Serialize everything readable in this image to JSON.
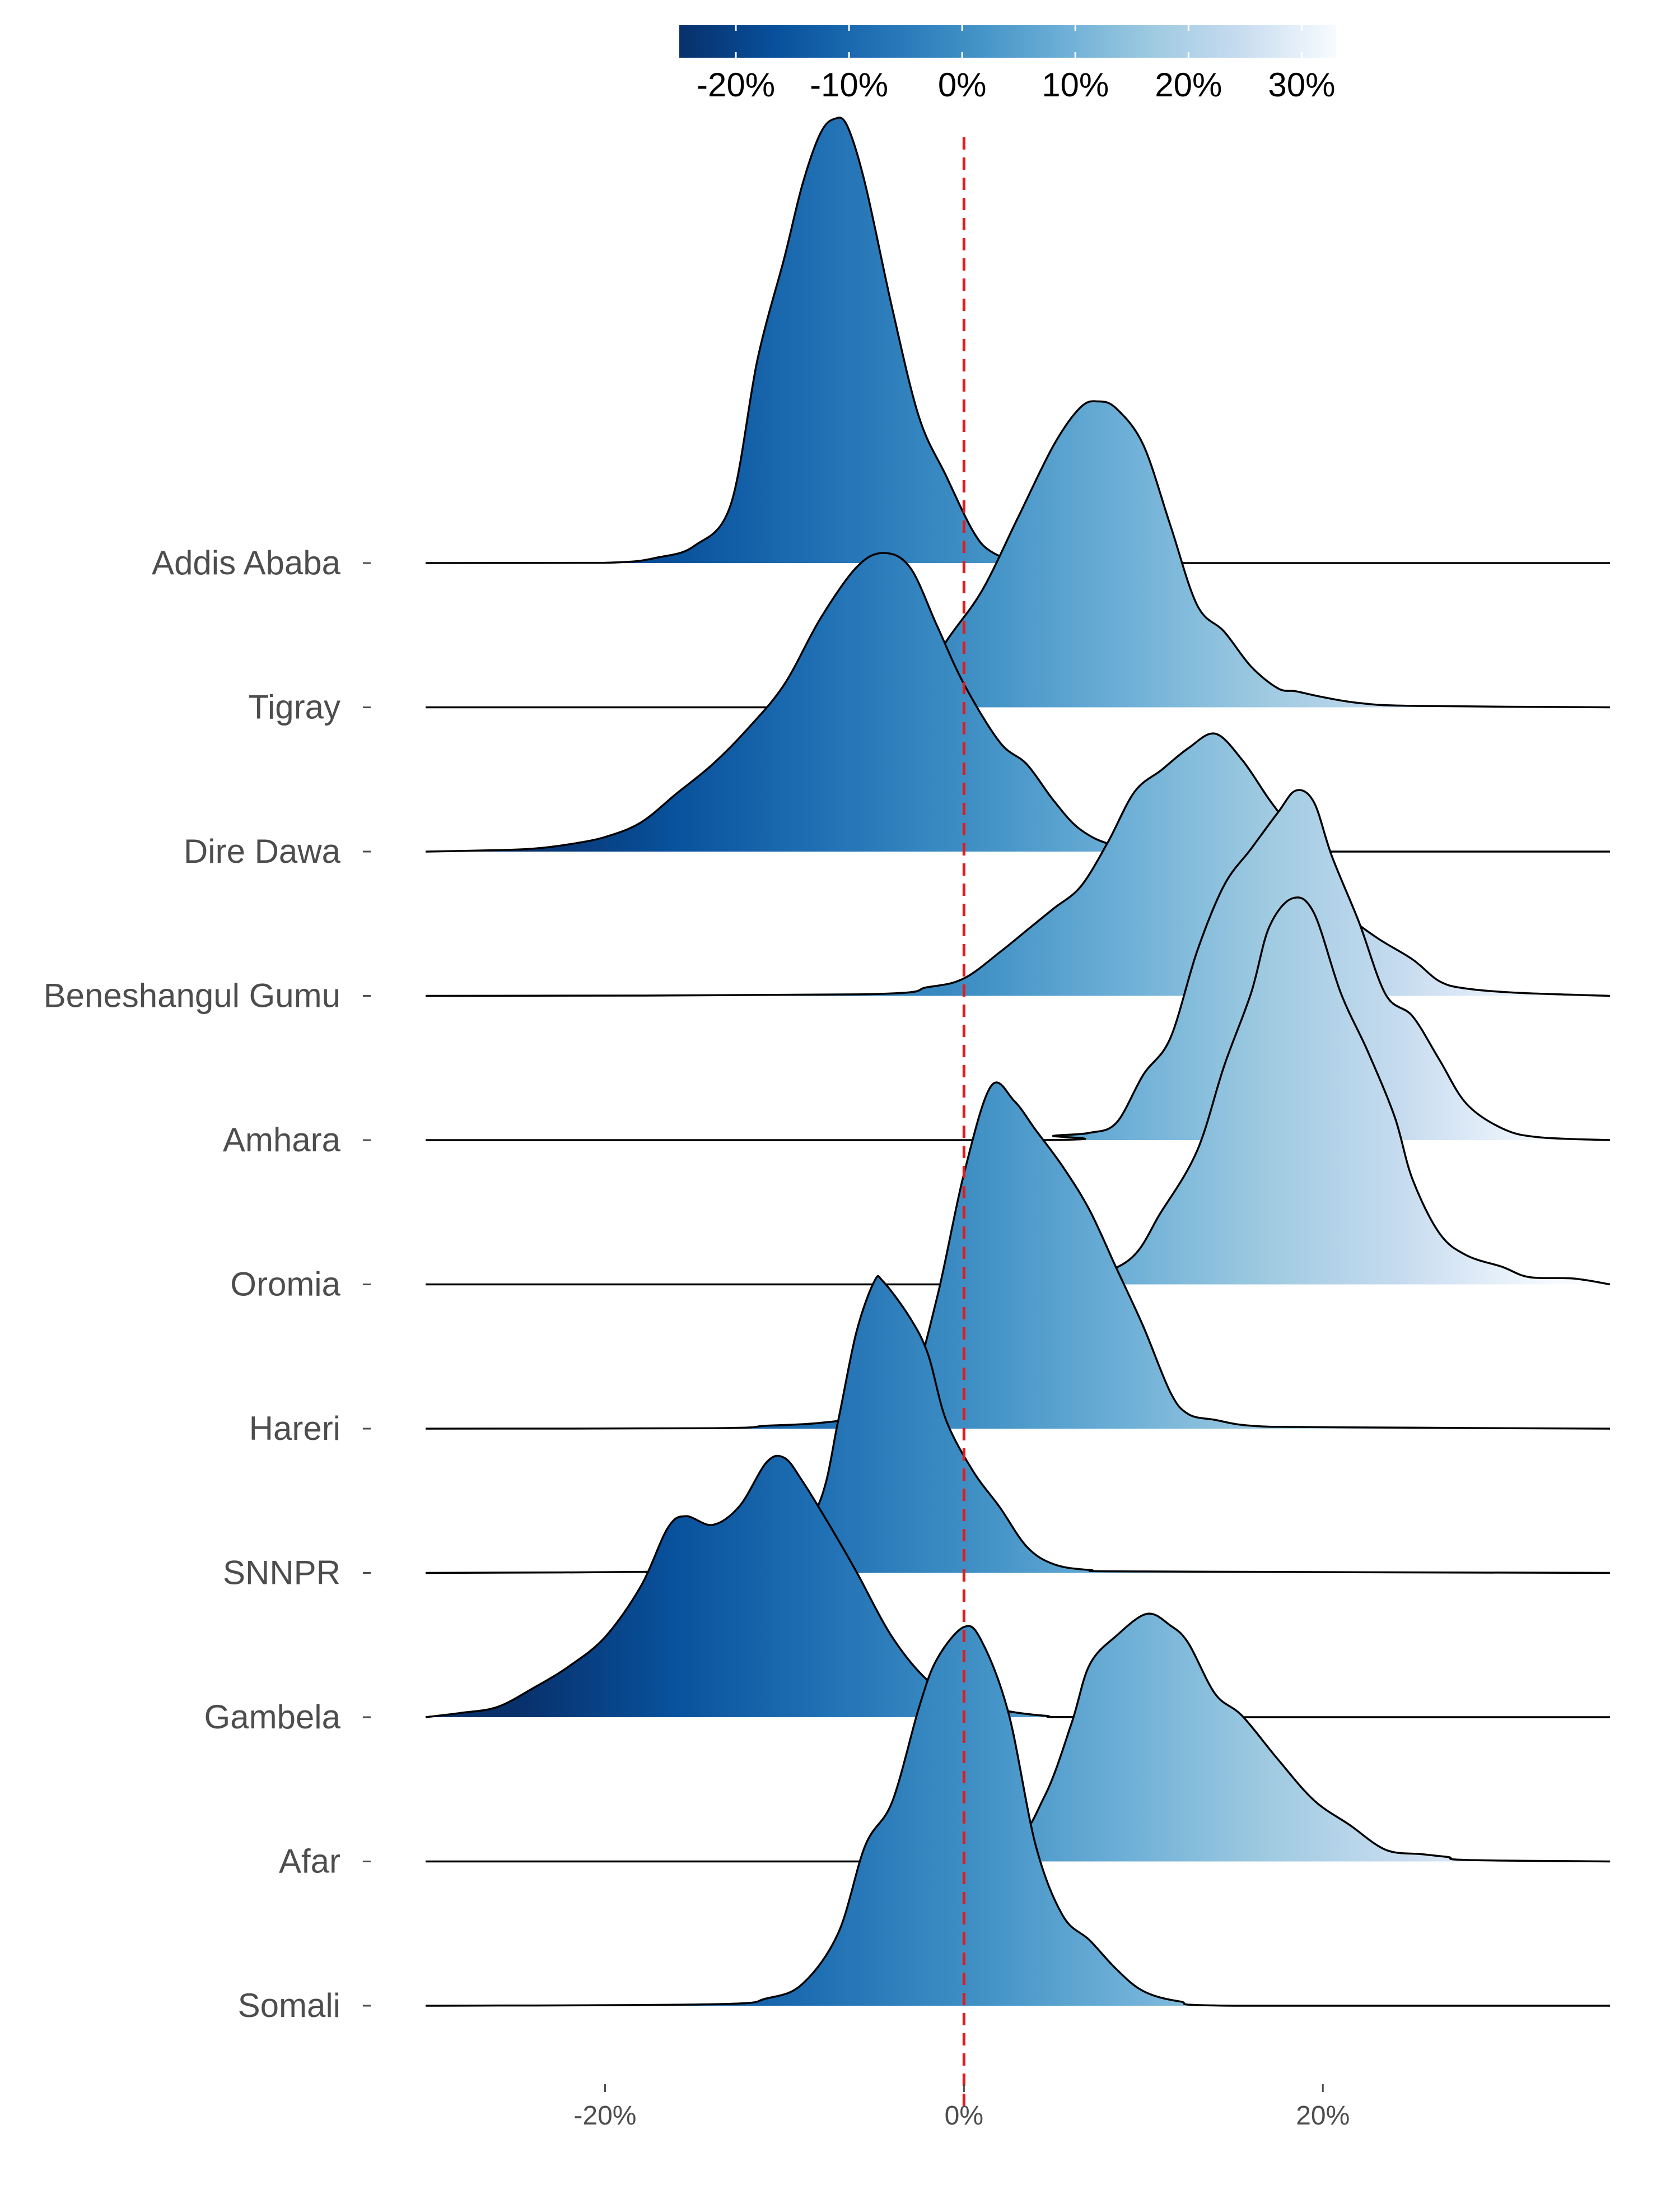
{
  "chart_data": {
    "type": "ridgeline",
    "title": "",
    "xlabel": "",
    "ylabel": "",
    "xlim": [
      -30,
      36
    ],
    "x_ticks": [
      {
        "value": -20,
        "label": "-20%"
      },
      {
        "value": 0,
        "label": "0%"
      },
      {
        "value": 20,
        "label": "20%"
      }
    ],
    "reference_line": {
      "x": 0,
      "color": "#e41a1c",
      "style": "dashed"
    },
    "colorbar": {
      "range": [
        -25,
        33
      ],
      "palette": "Blues (reversed)",
      "ticks": [
        {
          "value": -20,
          "label": "-20%"
        },
        {
          "value": -10,
          "label": "-10%"
        },
        {
          "value": 0,
          "label": "0%"
        },
        {
          "value": 10,
          "label": "10%"
        },
        {
          "value": 20,
          "label": "20%"
        },
        {
          "value": 30,
          "label": "30%"
        }
      ]
    },
    "series": [
      {
        "name": "Addis Ababa",
        "density": [
          [
            -30,
            0
          ],
          [
            -20,
            0.002
          ],
          [
            -17,
            0.04
          ],
          [
            -15,
            0.12
          ],
          [
            -13,
            0.4
          ],
          [
            -11.5,
            1.4
          ],
          [
            -10,
            2.1
          ],
          [
            -9,
            2.6
          ],
          [
            -8,
            2.95
          ],
          [
            -7.2,
            3.05
          ],
          [
            -6.5,
            3.0
          ],
          [
            -5.5,
            2.6
          ],
          [
            -4,
            1.75
          ],
          [
            -2.5,
            1.0
          ],
          [
            -1,
            0.6
          ],
          [
            0.5,
            0.22
          ],
          [
            1.5,
            0.08
          ],
          [
            3,
            0.02
          ],
          [
            6,
            0
          ],
          [
            36,
            0
          ]
        ]
      },
      {
        "name": "Tigray",
        "density": [
          [
            -30,
            0
          ],
          [
            -5,
            0
          ],
          [
            -3,
            0.04
          ],
          [
            -1,
            0.45
          ],
          [
            1,
            0.8
          ],
          [
            3,
            1.3
          ],
          [
            5,
            1.8
          ],
          [
            6.5,
            2.06
          ],
          [
            7.5,
            2.1
          ],
          [
            8.5,
            2.05
          ],
          [
            10,
            1.8
          ],
          [
            11.5,
            1.25
          ],
          [
            13,
            0.7
          ],
          [
            14.5,
            0.52
          ],
          [
            16,
            0.28
          ],
          [
            17.5,
            0.13
          ],
          [
            18.5,
            0.11
          ],
          [
            20,
            0.07
          ],
          [
            22,
            0.03
          ],
          [
            25,
            0.01
          ],
          [
            36,
            0
          ]
        ]
      },
      {
        "name": "Dire Dawa",
        "density": [
          [
            -30,
            0
          ],
          [
            -26,
            0.01
          ],
          [
            -24,
            0.02
          ],
          [
            -22,
            0.05
          ],
          [
            -20,
            0.1
          ],
          [
            -18,
            0.2
          ],
          [
            -16,
            0.4
          ],
          [
            -14,
            0.6
          ],
          [
            -12,
            0.85
          ],
          [
            -10,
            1.15
          ],
          [
            -8,
            1.6
          ],
          [
            -6,
            1.95
          ],
          [
            -4.5,
            2.05
          ],
          [
            -3,
            1.95
          ],
          [
            -1.5,
            1.55
          ],
          [
            0,
            1.15
          ],
          [
            2,
            0.75
          ],
          [
            3.5,
            0.6
          ],
          [
            5,
            0.35
          ],
          [
            6.5,
            0.15
          ],
          [
            8.5,
            0.04
          ],
          [
            12,
            0
          ],
          [
            36,
            0
          ]
        ]
      },
      {
        "name": "Beneshangul Gumu",
        "density": [
          [
            -30,
            0
          ],
          [
            -6,
            0.01
          ],
          [
            -2,
            0.06
          ],
          [
            0,
            0.12
          ],
          [
            2,
            0.3
          ],
          [
            3.5,
            0.45
          ],
          [
            5,
            0.6
          ],
          [
            6.5,
            0.75
          ],
          [
            8,
            1.05
          ],
          [
            9.5,
            1.4
          ],
          [
            11,
            1.55
          ],
          [
            12.5,
            1.7
          ],
          [
            14,
            1.8
          ],
          [
            15.5,
            1.62
          ],
          [
            17,
            1.35
          ],
          [
            18.5,
            1.1
          ],
          [
            20,
            0.82
          ],
          [
            21.5,
            0.55
          ],
          [
            23,
            0.4
          ],
          [
            25,
            0.25
          ],
          [
            26.5,
            0.1
          ],
          [
            28,
            0.05
          ],
          [
            31,
            0.02
          ],
          [
            36,
            0
          ]
        ]
      },
      {
        "name": "Amhara",
        "density": [
          [
            -30,
            0
          ],
          [
            4,
            0
          ],
          [
            5,
            0.03
          ],
          [
            7,
            0.05
          ],
          [
            8.5,
            0.12
          ],
          [
            10,
            0.45
          ],
          [
            11.5,
            0.7
          ],
          [
            13,
            1.3
          ],
          [
            14.5,
            1.75
          ],
          [
            16,
            2.0
          ],
          [
            17.5,
            2.25
          ],
          [
            18.5,
            2.4
          ],
          [
            19.5,
            2.32
          ],
          [
            20.5,
            1.95
          ],
          [
            22,
            1.5
          ],
          [
            23.5,
            1.0
          ],
          [
            25,
            0.85
          ],
          [
            26.5,
            0.55
          ],
          [
            28,
            0.25
          ],
          [
            30,
            0.08
          ],
          [
            32,
            0.02
          ],
          [
            36,
            0
          ]
        ]
      },
      {
        "name": "Oromia",
        "density": [
          [
            -30,
            0
          ],
          [
            -2,
            0
          ],
          [
            5,
            0.02
          ],
          [
            9,
            0.15
          ],
          [
            11,
            0.5
          ],
          [
            13,
            0.92
          ],
          [
            14.5,
            1.5
          ],
          [
            16,
            2.0
          ],
          [
            17,
            2.45
          ],
          [
            18.3,
            2.65
          ],
          [
            19.5,
            2.55
          ],
          [
            21,
            2.0
          ],
          [
            22.5,
            1.6
          ],
          [
            24,
            1.15
          ],
          [
            25,
            0.72
          ],
          [
            26.5,
            0.35
          ],
          [
            28,
            0.2
          ],
          [
            30,
            0.12
          ],
          [
            31.5,
            0.05
          ],
          [
            34,
            0.04
          ],
          [
            36,
            0
          ]
        ]
      },
      {
        "name": "Hareri",
        "density": [
          [
            -30,
            0
          ],
          [
            -14,
            0.003
          ],
          [
            -11,
            0.02
          ],
          [
            -8,
            0.04
          ],
          [
            -5,
            0.1
          ],
          [
            -3,
            0.28
          ],
          [
            -1.5,
            0.9
          ],
          [
            0,
            1.75
          ],
          [
            1.5,
            2.35
          ],
          [
            2.8,
            2.25
          ],
          [
            4,
            2.05
          ],
          [
            5.5,
            1.8
          ],
          [
            7,
            1.5
          ],
          [
            8.5,
            1.1
          ],
          [
            10,
            0.7
          ],
          [
            11.5,
            0.25
          ],
          [
            12.5,
            0.1
          ],
          [
            14,
            0.06
          ],
          [
            16,
            0.02
          ],
          [
            20,
            0.01
          ],
          [
            36,
            0
          ]
        ]
      },
      {
        "name": "SNNPR",
        "density": [
          [
            -30,
            0
          ],
          [
            -15,
            0.01
          ],
          [
            -12,
            0.04
          ],
          [
            -10,
            0.08
          ],
          [
            -8,
            0.5
          ],
          [
            -7,
            1.05
          ],
          [
            -6,
            1.65
          ],
          [
            -5,
            2.0
          ],
          [
            -4.5,
            2.0
          ],
          [
            -3,
            1.75
          ],
          [
            -2,
            1.5
          ],
          [
            -1,
            1.05
          ],
          [
            0.5,
            0.7
          ],
          [
            2,
            0.45
          ],
          [
            3.5,
            0.18
          ],
          [
            5,
            0.06
          ],
          [
            7,
            0.02
          ],
          [
            10,
            0.01
          ],
          [
            36,
            0
          ]
        ]
      },
      {
        "name": "Gambela",
        "density": [
          [
            -30,
            0
          ],
          [
            -28,
            0.03
          ],
          [
            -26,
            0.07
          ],
          [
            -24,
            0.2
          ],
          [
            -22,
            0.35
          ],
          [
            -20,
            0.55
          ],
          [
            -18,
            0.9
          ],
          [
            -16.5,
            1.3
          ],
          [
            -15.5,
            1.38
          ],
          [
            -14,
            1.32
          ],
          [
            -12.5,
            1.45
          ],
          [
            -11,
            1.75
          ],
          [
            -10,
            1.78
          ],
          [
            -9,
            1.62
          ],
          [
            -7.5,
            1.32
          ],
          [
            -6,
            1.0
          ],
          [
            -4,
            0.55
          ],
          [
            -2,
            0.25
          ],
          [
            0,
            0.1
          ],
          [
            2,
            0.05
          ],
          [
            4.5,
            0.01
          ],
          [
            8,
            0
          ],
          [
            36,
            0
          ]
        ]
      },
      {
        "name": "Afar",
        "density": [
          [
            -30,
            0
          ],
          [
            -2,
            0
          ],
          [
            2.5,
            0.1
          ],
          [
            4.5,
            0.45
          ],
          [
            6,
            0.95
          ],
          [
            7,
            1.35
          ],
          [
            8.5,
            1.55
          ],
          [
            10.2,
            1.7
          ],
          [
            11.5,
            1.62
          ],
          [
            12.5,
            1.5
          ],
          [
            14,
            1.15
          ],
          [
            15.5,
            1.0
          ],
          [
            17.5,
            0.7
          ],
          [
            19.5,
            0.42
          ],
          [
            21.5,
            0.25
          ],
          [
            23.5,
            0.08
          ],
          [
            25.5,
            0.05
          ],
          [
            27,
            0.03
          ],
          [
            28,
            0.01
          ],
          [
            36,
            0
          ]
        ]
      },
      {
        "name": "Somali",
        "density": [
          [
            -30,
            0
          ],
          [
            -14,
            0.01
          ],
          [
            -11,
            0.05
          ],
          [
            -9,
            0.15
          ],
          [
            -7,
            0.5
          ],
          [
            -5.5,
            1.1
          ],
          [
            -4,
            1.4
          ],
          [
            -2.5,
            2.05
          ],
          [
            -1.5,
            2.38
          ],
          [
            0,
            2.6
          ],
          [
            1,
            2.5
          ],
          [
            2.5,
            2.0
          ],
          [
            4,
            1.1
          ],
          [
            5.5,
            0.62
          ],
          [
            7,
            0.45
          ],
          [
            8.5,
            0.25
          ],
          [
            10,
            0.1
          ],
          [
            12,
            0.03
          ],
          [
            15,
            0
          ],
          [
            36,
            0
          ]
        ]
      }
    ]
  }
}
